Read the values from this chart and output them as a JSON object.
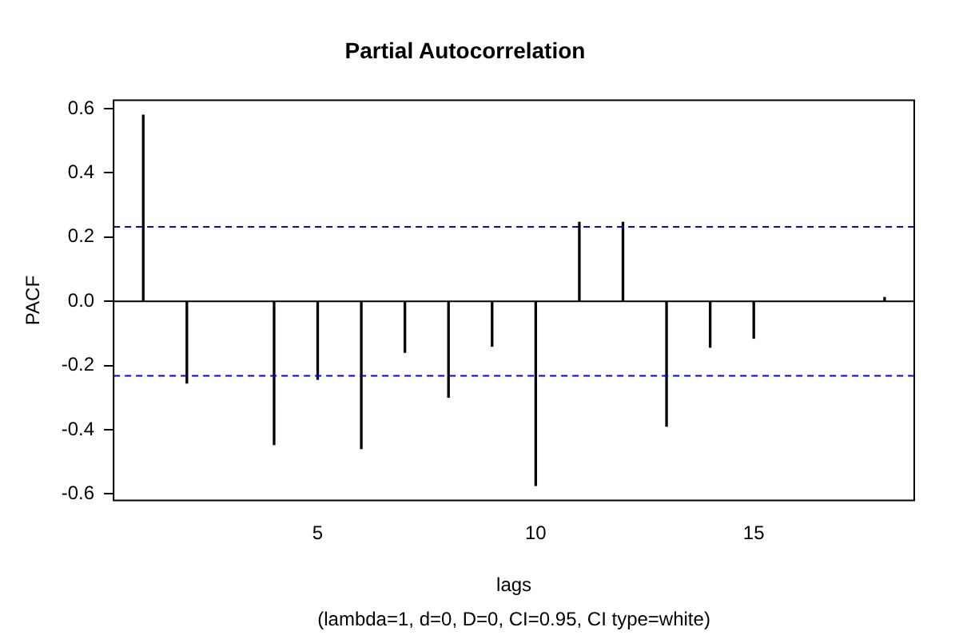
{
  "chart_data": {
    "type": "bar",
    "title": "Partial Autocorrelation",
    "xlabel": "lags",
    "ylabel": "PACF",
    "annotations": [
      "(lambda=1, d=0, D=0, CI=0.95, CI type=white)"
    ],
    "x": [
      1,
      2,
      3,
      4,
      5,
      6,
      7,
      8,
      9,
      10,
      11,
      12,
      13,
      14,
      15,
      16,
      17,
      18
    ],
    "values": [
      0.58,
      -0.255,
      null,
      -0.446,
      -0.243,
      -0.459,
      -0.159,
      -0.299,
      -0.14,
      -0.574,
      0.246,
      0.246,
      -0.389,
      -0.143,
      -0.115,
      null,
      null,
      0.012
    ],
    "color": "#000000",
    "xlim": [
      0.32,
      18.68
    ],
    "xticks": [
      5,
      10,
      15
    ],
    "ylim": [
      -0.62,
      0.626
    ],
    "yticks": [
      -0.6,
      -0.4,
      -0.2,
      {
        "value": 0,
        "label": "0.0"
      },
      0.2,
      0.4,
      0.6
    ],
    "ref_lines": [
      {
        "axis": "y",
        "value": 0.232,
        "color": "#0000ff",
        "line_style": "dashed"
      },
      {
        "axis": "y",
        "value": -0.232,
        "color": "#0000ff",
        "line_style": "dashed"
      },
      {
        "axis": "y",
        "value": 0,
        "color": "#000000",
        "line_style": "solid"
      }
    ],
    "grid": false,
    "legend": false
  }
}
